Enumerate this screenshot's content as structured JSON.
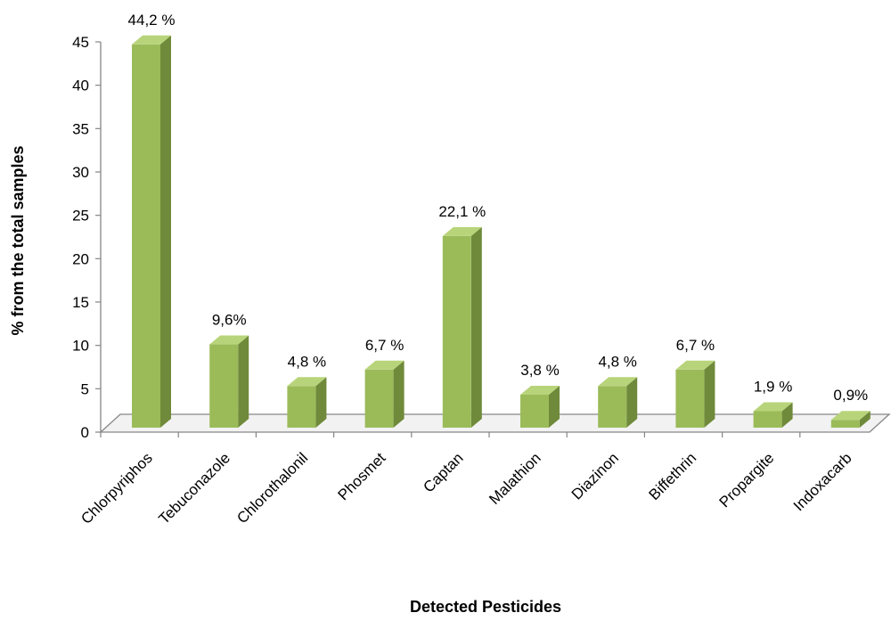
{
  "chart_data": {
    "type": "bar",
    "categories": [
      "Chlorpyriphos",
      "Tebuconazole",
      "Chlorothalonil",
      "Phosmet",
      "Captan",
      "Malathion",
      "Diazinon",
      "Biffethrin",
      "Propargite",
      "Indoxacarb"
    ],
    "values": [
      44.2,
      9.6,
      4.8,
      6.7,
      22.1,
      3.8,
      4.8,
      6.7,
      1.9,
      0.9
    ],
    "data_labels": [
      "44,2 %",
      "9,6%",
      "4,8 %",
      "6,7 %",
      "22,1 %",
      "3,8 %",
      "4,8 %",
      "6,7 %",
      "1,9 %",
      "0,9%"
    ],
    "xlabel": "Detected Pesticides",
    "ylabel": "% from the total samples",
    "ylim": [
      0,
      45
    ],
    "yticks": [
      "0",
      "5",
      "10",
      "15",
      "20",
      "25",
      "30",
      "35",
      "40",
      "45"
    ],
    "grid": false,
    "legend": "none",
    "style": "3d-column",
    "colors": {
      "bar_front": "#9bbb59",
      "bar_side": "#6f8a3a",
      "bar_top": "#b8d47a",
      "axis": "#868686"
    }
  }
}
